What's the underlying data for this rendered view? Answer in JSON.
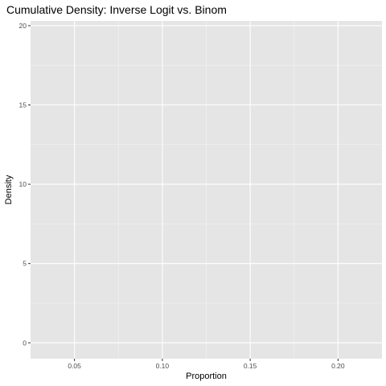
{
  "chart_data": {
    "type": "line",
    "title": "Cumulative Density: Inverse Logit vs. Binom",
    "xlabel": "Proportion",
    "ylabel": "Density",
    "xlim": [
      0.025,
      0.225
    ],
    "ylim": [
      -1,
      20.3
    ],
    "x_ticks": [
      0.05,
      0.1,
      0.15,
      0.2
    ],
    "x_tick_labels": [
      "0.05",
      "0.10",
      "0.15",
      "0.20"
    ],
    "x_minor_ticks": [
      0.075,
      0.125,
      0.175
    ],
    "y_ticks": [
      0,
      5,
      10,
      15,
      20
    ],
    "y_tick_labels": [
      "0",
      "5",
      "10",
      "15",
      "20"
    ],
    "y_minor_ticks": [
      2.5,
      7.5,
      12.5,
      17.5
    ],
    "series": [],
    "grid": true,
    "legend": "none",
    "colors": {
      "panel_background": "#e5e5e5",
      "grid_major": "#ffffff",
      "grid_minor": "#f2f2f2",
      "tick_color": "#333333",
      "tick_label_color": "#4d4d4d",
      "text_color": "#000000"
    }
  }
}
